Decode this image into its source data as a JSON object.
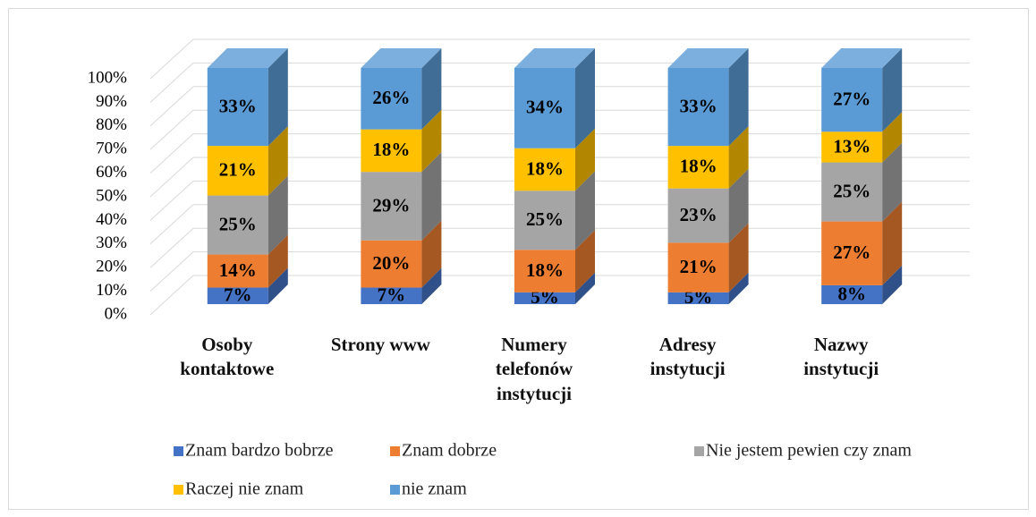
{
  "chart_data": {
    "type": "bar3d_stacked",
    "categories": [
      "Osoby\nkontaktowe",
      "Strony www",
      "Numery\ntelefonów\ninstytucji",
      "Adresy\ninstytucji",
      "Nazwy\ninstytucji"
    ],
    "series": [
      {
        "name": "Znam bardzo bobrze",
        "color": "#4472c4",
        "values": [
          7,
          7,
          5,
          5,
          8
        ],
        "value_labels": [
          "7%",
          "7%",
          "5%",
          "5%",
          "8%"
        ]
      },
      {
        "name": "Znam dobrze",
        "color": "#ed7d31",
        "values": [
          14,
          20,
          18,
          21,
          27
        ],
        "value_labels": [
          "14%",
          "20%",
          "18%",
          "21%",
          "27%"
        ]
      },
      {
        "name": "Nie jestem pewien czy znam",
        "color": "#a5a5a5",
        "values": [
          25,
          29,
          25,
          23,
          25
        ],
        "value_labels": [
          "25%",
          "29%",
          "25%",
          "23%",
          "25%"
        ]
      },
      {
        "name": "Raczej nie znam",
        "color": "#ffc000",
        "values": [
          21,
          18,
          18,
          18,
          13
        ],
        "value_labels": [
          "21%",
          "18%",
          "18%",
          "18%",
          "13%"
        ]
      },
      {
        "name": "nie znam",
        "color": "#5b9bd5",
        "values": [
          33,
          26,
          34,
          33,
          27
        ],
        "value_labels": [
          "33%",
          "26%",
          "34%",
          "33%",
          "27%"
        ]
      }
    ],
    "ylim": [
      0,
      100
    ],
    "yticks": [
      {
        "value": 0,
        "label": "0%"
      },
      {
        "value": 10,
        "label": "10%"
      },
      {
        "value": 20,
        "label": "20%"
      },
      {
        "value": 30,
        "label": "30%"
      },
      {
        "value": 40,
        "label": "40%"
      },
      {
        "value": 50,
        "label": "50%"
      },
      {
        "value": 60,
        "label": "60%"
      },
      {
        "value": 70,
        "label": "70%"
      },
      {
        "value": 80,
        "label": "80%"
      },
      {
        "value": 90,
        "label": "90%"
      },
      {
        "value": 100,
        "label": "100%"
      }
    ],
    "grid": true,
    "legend": "bottom"
  }
}
